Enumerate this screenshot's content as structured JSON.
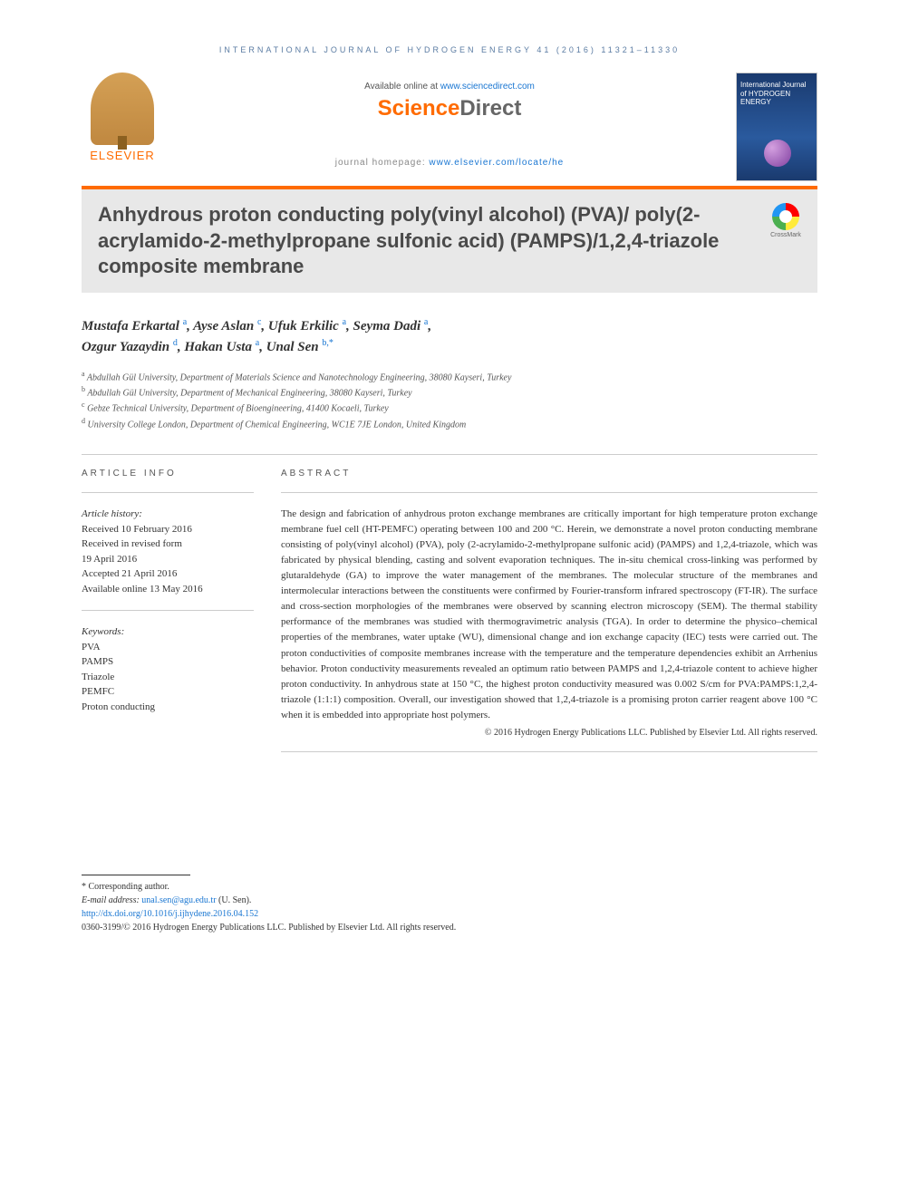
{
  "header": {
    "journal_citation": "INTERNATIONAL JOURNAL OF HYDROGEN ENERGY 41 (2016) 11321–11330",
    "available_text": "Available online at ",
    "available_link": "www.sciencedirect.com",
    "sciencedirect": {
      "part1": "Science",
      "part2": "Direct"
    },
    "elsevier_label": "ELSEVIER",
    "homepage_label": "journal homepage: ",
    "homepage_url": "www.elsevier.com/locate/he",
    "cover_title": "International Journal of\nHYDROGEN\nENERGY"
  },
  "title": "Anhydrous proton conducting poly(vinyl alcohol) (PVA)/ poly(2-acrylamido-2-methylpropane sulfonic acid) (PAMPS)/1,2,4-triazole composite membrane",
  "crossmark_label": "CrossMark",
  "authors": [
    {
      "name": "Mustafa Erkartal",
      "aff": "a"
    },
    {
      "name": "Ayse Aslan",
      "aff": "c"
    },
    {
      "name": "Ufuk Erkilic",
      "aff": "a"
    },
    {
      "name": "Seyma Dadi",
      "aff": "a"
    },
    {
      "name": "Ozgur Yazaydin",
      "aff": "d"
    },
    {
      "name": "Hakan Usta",
      "aff": "a"
    },
    {
      "name": "Unal Sen",
      "aff": "b,",
      "corr": "*"
    }
  ],
  "affiliations": [
    {
      "key": "a",
      "text": "Abdullah Gül University, Department of Materials Science and Nanotechnology Engineering, 38080 Kayseri, Turkey"
    },
    {
      "key": "b",
      "text": "Abdullah Gül University, Department of Mechanical Engineering, 38080 Kayseri, Turkey"
    },
    {
      "key": "c",
      "text": "Gebze Technical University, Department of Bioengineering, 41400 Kocaeli, Turkey"
    },
    {
      "key": "d",
      "text": "University College London, Department of Chemical Engineering, WC1E 7JE London, United Kingdom"
    }
  ],
  "article_info": {
    "heading": "ARTICLE INFO",
    "history_label": "Article history:",
    "received": "Received 10 February 2016",
    "revised": "Received in revised form",
    "revised_date": "19 April 2016",
    "accepted": "Accepted 21 April 2016",
    "online": "Available online 13 May 2016",
    "keywords_label": "Keywords:",
    "keywords": [
      "PVA",
      "PAMPS",
      "Triazole",
      "PEMFC",
      "Proton conducting"
    ]
  },
  "abstract": {
    "heading": "ABSTRACT",
    "text": "The design and fabrication of anhydrous proton exchange membranes are critically important for high temperature proton exchange membrane fuel cell (HT-PEMFC) operating between 100 and 200 °C. Herein, we demonstrate a novel proton conducting membrane consisting of poly(vinyl alcohol) (PVA), poly (2-acrylamido-2-methylpropane sulfonic acid) (PAMPS) and 1,2,4-triazole, which was fabricated by physical blending, casting and solvent evaporation techniques. The in-situ chemical cross-linking was performed by glutaraldehyde (GA) to improve the water management of the membranes. The molecular structure of the membranes and intermolecular interactions between the constituents were confirmed by Fourier-transform infrared spectroscopy (FT-IR). The surface and cross-section morphologies of the membranes were observed by scanning electron microscopy (SEM). The thermal stability performance of the membranes was studied with thermogravimetric analysis (TGA). In order to determine the physico–chemical properties of the membranes, water uptake (WU), dimensional change and ion exchange capacity (IEC) tests were carried out. The proton conductivities of composite membranes increase with the temperature and the temperature dependencies exhibit an Arrhenius behavior. Proton conductivity measurements revealed an optimum ratio between PAMPS and 1,2,4-triazole content to achieve higher proton conductivity. In anhydrous state at 150 °C, the highest proton conductivity measured was 0.002 S/cm for PVA:PAMPS:1,2,4-triazole (1:1:1) composition. Overall, our investigation showed that 1,2,4-triazole is a promising proton carrier reagent above 100 °C when it is embedded into appropriate host polymers.",
    "copyright": "© 2016 Hydrogen Energy Publications LLC. Published by Elsevier Ltd. All rights reserved."
  },
  "footer": {
    "corr_label": "* Corresponding author.",
    "email_label": "E-mail address: ",
    "email": "unal.sen@agu.edu.tr",
    "email_name": " (U. Sen).",
    "doi": "http://dx.doi.org/10.1016/j.ijhydene.2016.04.152",
    "issn_copyright": "0360-3199/© 2016 Hydrogen Energy Publications LLC. Published by Elsevier Ltd. All rights reserved."
  },
  "colors": {
    "orange": "#ff6b00",
    "link_blue": "#1976d2",
    "header_blue": "#5b7ca3",
    "title_gray": "#4a4a4a",
    "title_bg": "#e8e8e8"
  }
}
